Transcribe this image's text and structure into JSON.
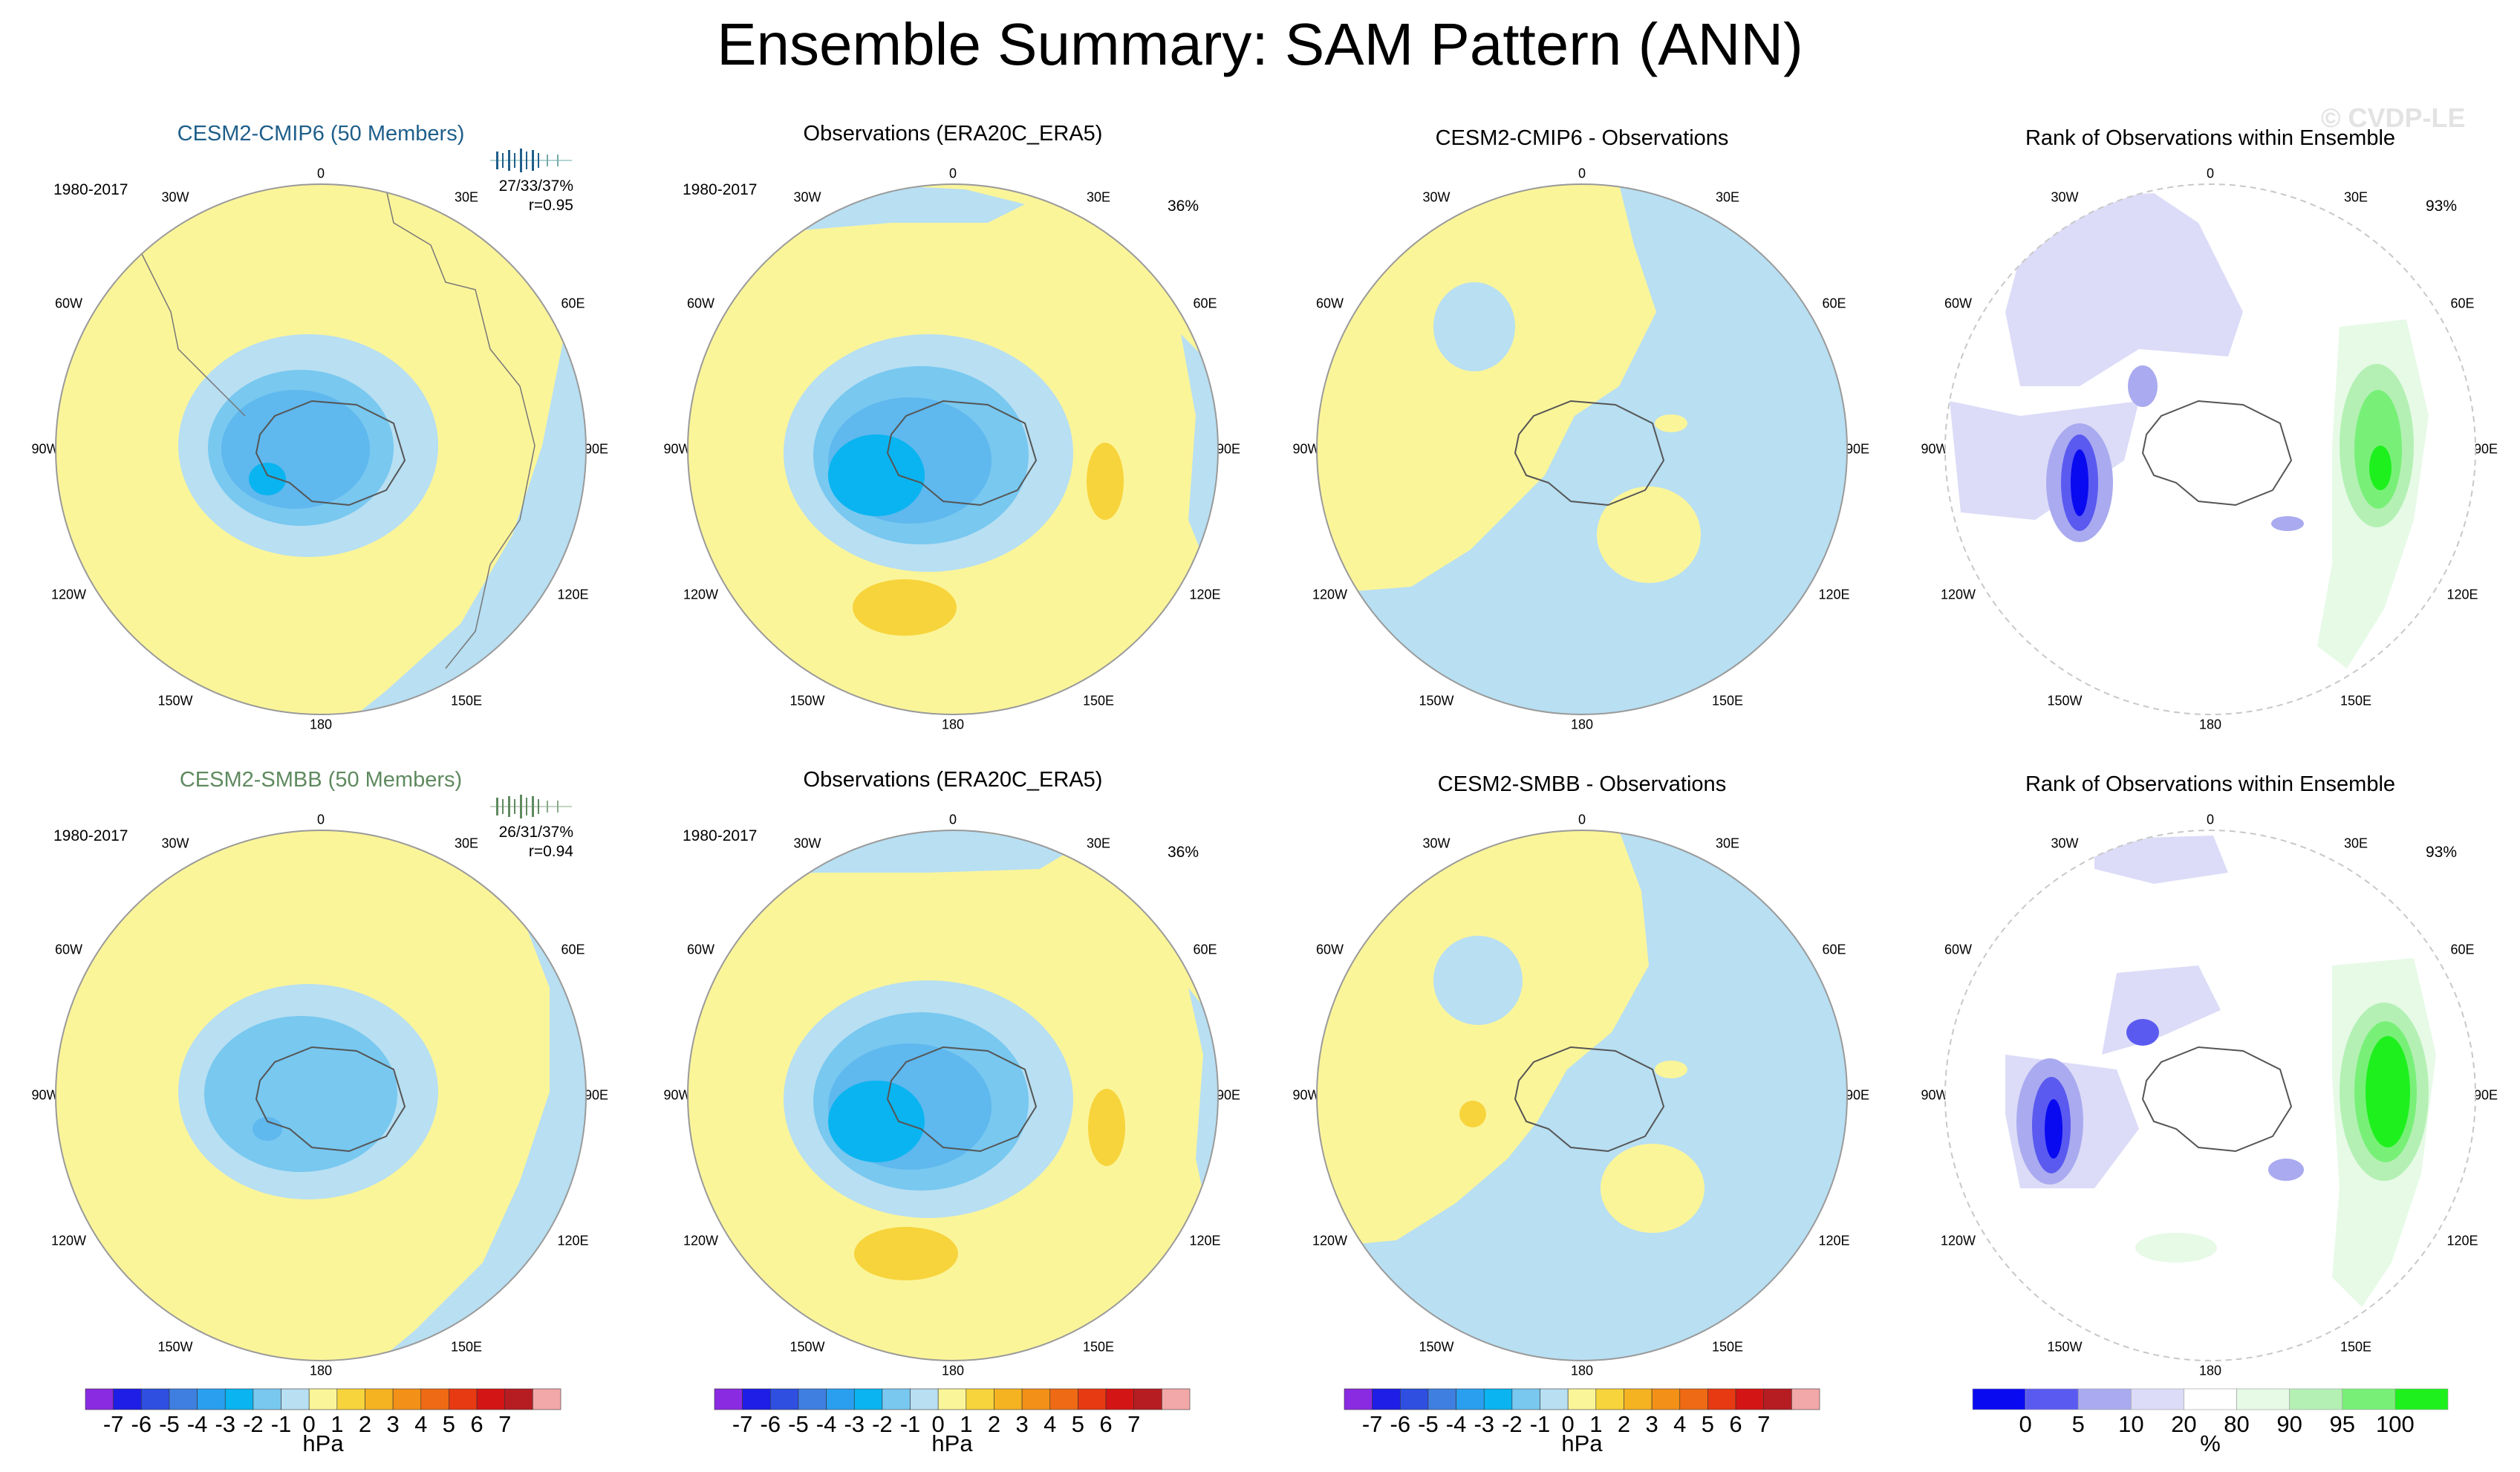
{
  "title": "Ensemble Summary: SAM Pattern (ANN)",
  "watermark": "© CVDP-LE",
  "colors": {
    "model1_title": "#1f5f8b",
    "model2_title": "#5f8a5f",
    "land": "#ffffff",
    "coast": "#555555",
    "border": "#9a9a9a",
    "hpa_scale": [
      "#8a2be2",
      "#1e1ee6",
      "#2e4fe0",
      "#3f7fe0",
      "#2a9ff0",
      "#0ab4f0",
      "#78c8f0",
      "#b8dff2",
      "#fbf59a",
      "#f7d43c",
      "#f5b322",
      "#f39018",
      "#ef6a14",
      "#e83a12",
      "#d41515",
      "#b51d22",
      "#f2a8a8"
    ],
    "rank_scale": [
      "#0a0af0",
      "#5a5af0",
      "#aaaaf0",
      "#dcdcf8",
      "#ffffff",
      "#e6fae6",
      "#b4f0b4",
      "#78f078",
      "#1ef01e"
    ]
  },
  "hpa_colorbar": {
    "ticks": [
      "-7",
      "-6",
      "-5",
      "-4",
      "-3",
      "-2",
      "-1",
      "0",
      "1",
      "2",
      "3",
      "4",
      "5",
      "6",
      "7"
    ],
    "unit": "hPa"
  },
  "rank_colorbar": {
    "ticks": [
      "0",
      "5",
      "10",
      "20",
      "80",
      "90",
      "95",
      "100"
    ],
    "unit": "%"
  },
  "lon_labels": [
    "0",
    "30E",
    "60E",
    "90E",
    "120E",
    "150E",
    "180",
    "150W",
    "120W",
    "90W",
    "60W",
    "30W"
  ],
  "rows": [
    {
      "model": {
        "title": "CESM2-CMIP6 (50 Members)",
        "period": "1980-2017",
        "stats": "27/33/37%",
        "corr": "r=0.95"
      },
      "obs": {
        "title": "Observations (ERA20C_ERA5)",
        "period": "1980-2017",
        "pct": "36%"
      },
      "diff": {
        "title": "CESM2-CMIP6 - Observations"
      },
      "rank": {
        "title": "Rank of Observations within Ensemble",
        "pct": "93%"
      }
    },
    {
      "model": {
        "title": "CESM2-SMBB (50 Members)",
        "period": "1980-2017",
        "stats": "26/31/37%",
        "corr": "r=0.94"
      },
      "obs": {
        "title": "Observations (ERA20C_ERA5)",
        "period": "1980-2017",
        "pct": "36%"
      },
      "diff": {
        "title": "CESM2-SMBB - Observations"
      },
      "rank": {
        "title": "Rank of Observations within Ensemble",
        "pct": "93%"
      }
    }
  ],
  "chart_data": [
    {
      "type": "heatmap",
      "title": "CESM2-CMIP6 (50 Members)",
      "projection": "south polar stereographic",
      "field": "SLP SAM pattern",
      "units": "hPa",
      "levels": [
        -7,
        -6,
        -5,
        -4,
        -3,
        -2,
        -1,
        0,
        1,
        2,
        3,
        4,
        5,
        6,
        7
      ],
      "min_value": -4,
      "max_value": 0,
      "period": "1980-2017",
      "r": 0.95
    },
    {
      "type": "heatmap",
      "title": "Observations (ERA20C_ERA5)",
      "units": "hPa",
      "levels": [
        -7,
        -6,
        -5,
        -4,
        -3,
        -2,
        -1,
        0,
        1,
        2,
        3,
        4,
        5,
        6,
        7
      ],
      "min_value": -4,
      "max_value": 1,
      "pct_variance": 36
    },
    {
      "type": "heatmap",
      "title": "CESM2-CMIP6 - Observations",
      "units": "hPa",
      "levels": [
        -7,
        -6,
        -5,
        -4,
        -3,
        -2,
        -1,
        0,
        1,
        2,
        3,
        4,
        5,
        6,
        7
      ],
      "min_value": -1,
      "max_value": 1
    },
    {
      "type": "heatmap",
      "title": "Rank of Observations within Ensemble",
      "units": "%",
      "levels": [
        0,
        5,
        10,
        20,
        80,
        90,
        95,
        100
      ],
      "pct": 93
    },
    {
      "type": "heatmap",
      "title": "CESM2-SMBB (50 Members)",
      "units": "hPa",
      "levels": [
        -7,
        -6,
        -5,
        -4,
        -3,
        -2,
        -1,
        0,
        1,
        2,
        3,
        4,
        5,
        6,
        7
      ],
      "min_value": -4,
      "max_value": 0,
      "period": "1980-2017",
      "r": 0.94
    },
    {
      "type": "heatmap",
      "title": "Observations (ERA20C_ERA5)",
      "units": "hPa",
      "levels": [
        -7,
        -6,
        -5,
        -4,
        -3,
        -2,
        -1,
        0,
        1,
        2,
        3,
        4,
        5,
        6,
        7
      ],
      "min_value": -4,
      "max_value": 1,
      "pct_variance": 36
    },
    {
      "type": "heatmap",
      "title": "CESM2-SMBB - Observations",
      "units": "hPa",
      "levels": [
        -7,
        -6,
        -5,
        -4,
        -3,
        -2,
        -1,
        0,
        1,
        2,
        3,
        4,
        5,
        6,
        7
      ],
      "min_value": -1,
      "max_value": 1
    },
    {
      "type": "heatmap",
      "title": "Rank of Observations within Ensemble",
      "units": "%",
      "levels": [
        0,
        5,
        10,
        20,
        80,
        90,
        95,
        100
      ],
      "pct": 93
    }
  ]
}
